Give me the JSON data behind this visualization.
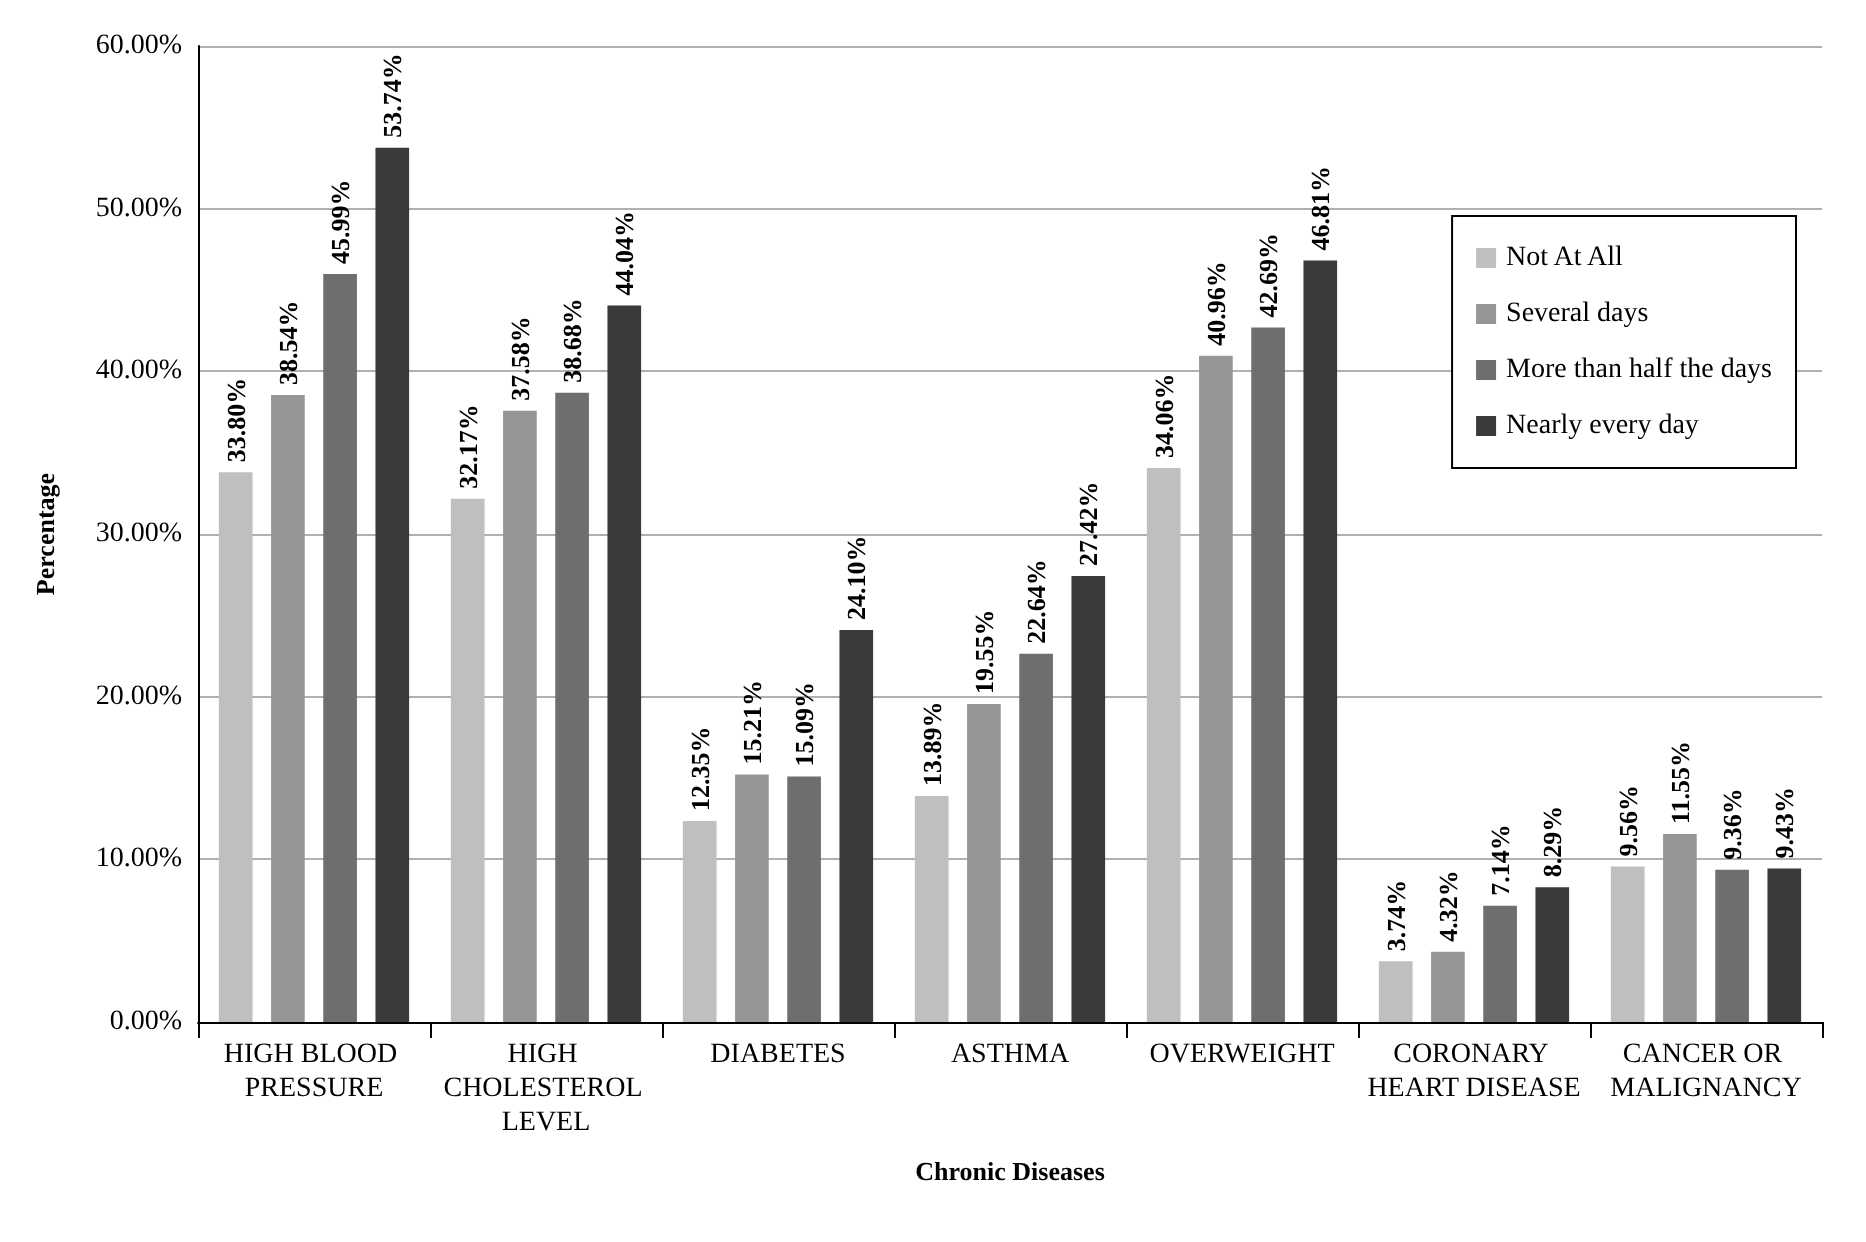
{
  "chart_data": {
    "type": "bar",
    "xlabel": "Chronic Diseases",
    "ylabel": "Percentage",
    "categories": [
      "HIGH BLOOD PRESSURE",
      "HIGH CHOLESTEROL LEVEL",
      "DIABETES",
      "ASTHMA",
      "OVERWEIGHT",
      "CORONARY HEART DISEASE",
      "CANCER OR MALIGNANCY"
    ],
    "series": [
      {
        "name": "Not At All",
        "color": "#bfbfbf",
        "values": [
          33.8,
          32.17,
          12.35,
          13.89,
          34.06,
          3.74,
          9.56
        ],
        "value_labels": [
          "33.80%",
          "32.17%",
          "12.35%",
          "13.89%",
          "34.06%",
          "3.74%",
          "9.56%"
        ]
      },
      {
        "name": "Several days",
        "color": "#969696",
        "values": [
          38.54,
          37.58,
          15.21,
          19.55,
          40.96,
          4.32,
          11.55
        ],
        "value_labels": [
          "38.54%",
          "37.58%",
          "15.21%",
          "19.55%",
          "40.96%",
          "4.32%",
          "11.55%"
        ]
      },
      {
        "name": "More than half the days",
        "color": "#6e6e6e",
        "values": [
          45.99,
          38.68,
          15.09,
          22.64,
          42.69,
          7.14,
          9.36
        ],
        "value_labels": [
          "45.99%",
          "38.68%",
          "15.09%",
          "22.64%",
          "42.69%",
          "7.14%",
          "9.36%"
        ]
      },
      {
        "name": "Nearly every day",
        "color": "#3a3a3a",
        "values": [
          53.74,
          44.04,
          24.1,
          27.42,
          46.81,
          8.29,
          9.43
        ],
        "value_labels": [
          "53.74%",
          "44.04%",
          "24.10%",
          "27.42%",
          "46.81%",
          "8.29%",
          "9.43%"
        ]
      }
    ],
    "ylim": [
      0,
      60
    ],
    "yticks": [
      {
        "value": 0,
        "label": "0.00%"
      },
      {
        "value": 10,
        "label": "10.00%"
      },
      {
        "value": 20,
        "label": "20.00%"
      },
      {
        "value": 30,
        "label": "30.00%"
      },
      {
        "value": 40,
        "label": "40.00%"
      },
      {
        "value": 50,
        "label": "50.00%"
      },
      {
        "value": 60,
        "label": "60.00%"
      }
    ],
    "grid": "y",
    "legend": "right"
  }
}
